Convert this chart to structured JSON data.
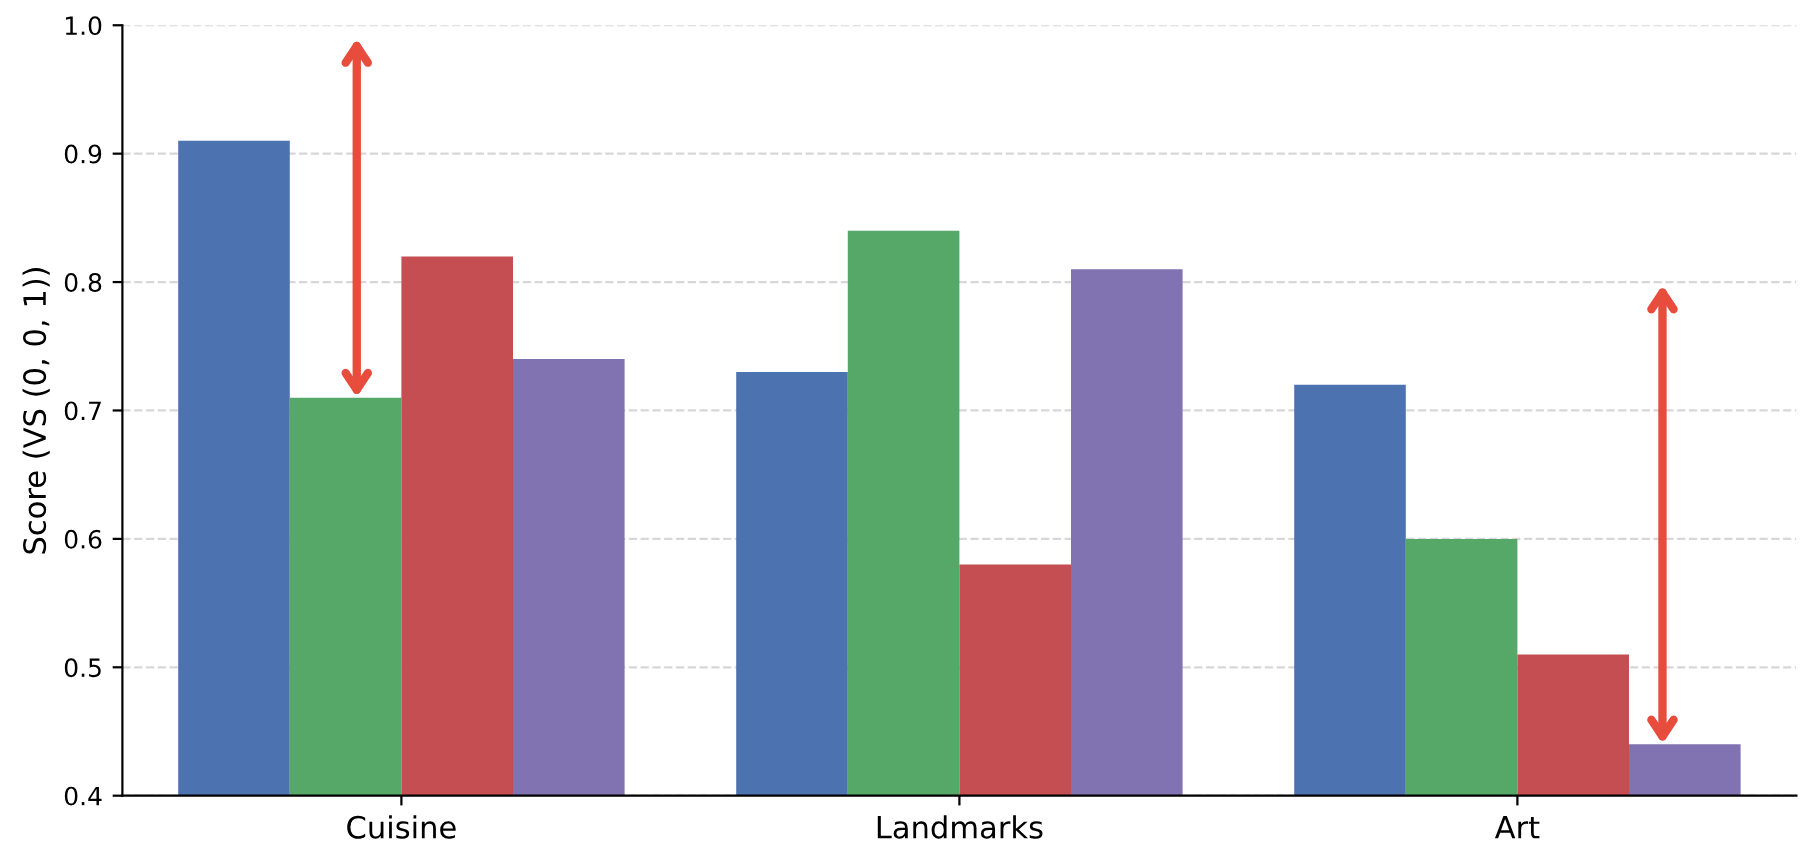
{
  "chart_data": {
    "type": "bar",
    "ylabel": "Score (VS (0, 0, 1))",
    "categories": [
      "Cuisine",
      "Landmarks",
      "Art"
    ],
    "series": [
      {
        "color": "#4c72b0",
        "values": [
          0.91,
          0.73,
          0.72
        ]
      },
      {
        "color": "#55a868",
        "values": [
          0.71,
          0.84,
          0.6
        ]
      },
      {
        "color": "#c44e52",
        "values": [
          0.82,
          0.58,
          0.51
        ]
      },
      {
        "color": "#8172b2",
        "values": [
          0.74,
          0.81,
          0.44
        ]
      }
    ],
    "ylim": [
      0.4,
      1.0
    ],
    "yticks": [
      0.4,
      0.5,
      0.6,
      0.7,
      0.8,
      0.9,
      {
        "value": 1.0,
        "label": "1.0"
      }
    ],
    "grid": "y"
  }
}
